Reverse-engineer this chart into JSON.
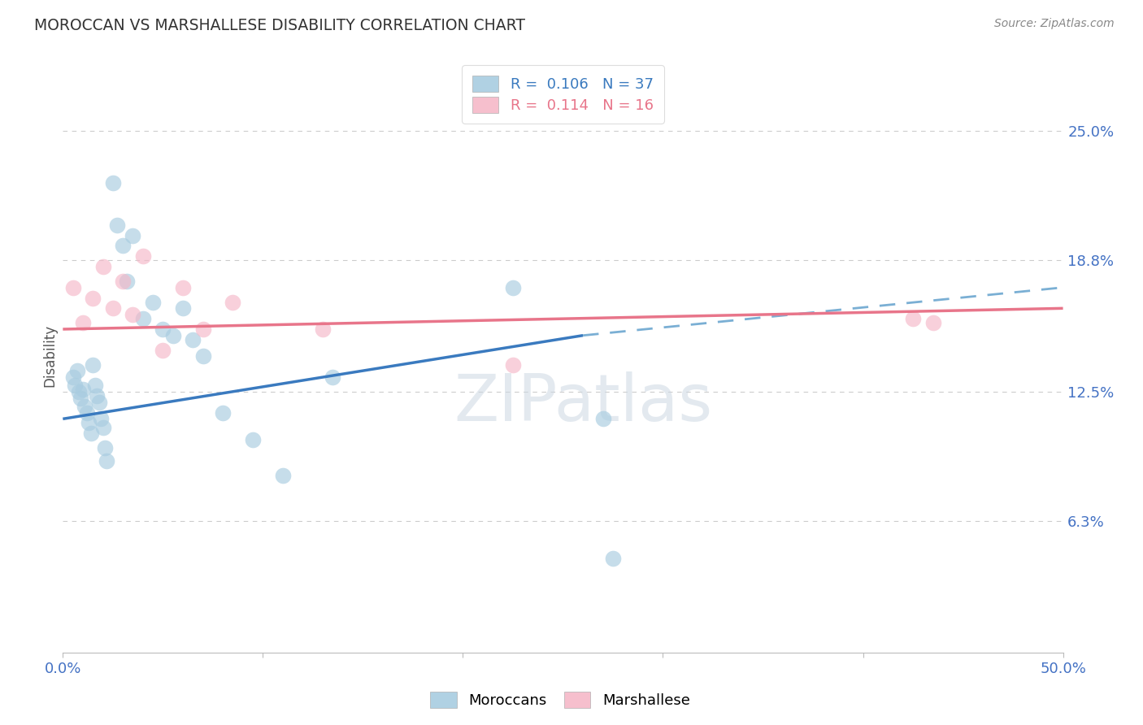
{
  "title": "MOROCCAN VS MARSHALLESE DISABILITY CORRELATION CHART",
  "source": "Source: ZipAtlas.com",
  "ylabel_label": "Disability",
  "xlim": [
    0,
    50
  ],
  "ylim": [
    0,
    28.5
  ],
  "yticks": [
    6.3,
    12.5,
    18.8,
    25.0
  ],
  "xticks": [
    0,
    10,
    20,
    30,
    40,
    50
  ],
  "legend_R1": "0.106",
  "legend_N1": "37",
  "legend_R2": "0.114",
  "legend_N2": "16",
  "blue_scatter_color": "#a8cce0",
  "pink_scatter_color": "#f5b8c8",
  "blue_line_color": "#3a7abf",
  "pink_line_color": "#e8758a",
  "blue_dash_color": "#7aafd4",
  "moroccans_x": [
    0.5,
    0.6,
    0.7,
    0.8,
    0.9,
    1.0,
    1.1,
    1.2,
    1.3,
    1.4,
    1.5,
    1.6,
    1.7,
    1.8,
    1.9,
    2.0,
    2.1,
    2.2,
    2.5,
    2.7,
    3.0,
    3.2,
    3.5,
    4.0,
    4.5,
    5.0,
    5.5,
    6.0,
    6.5,
    7.0,
    8.0,
    9.5,
    11.0,
    13.5,
    22.5,
    27.0,
    27.5
  ],
  "moroccans_y": [
    13.2,
    12.8,
    13.5,
    12.5,
    12.2,
    12.6,
    11.8,
    11.5,
    11.0,
    10.5,
    13.8,
    12.8,
    12.3,
    12.0,
    11.2,
    10.8,
    9.8,
    9.2,
    22.5,
    20.5,
    19.5,
    17.8,
    20.0,
    16.0,
    16.8,
    15.5,
    15.2,
    16.5,
    15.0,
    14.2,
    11.5,
    10.2,
    8.5,
    13.2,
    17.5,
    11.2,
    4.5
  ],
  "marshallese_x": [
    0.5,
    1.0,
    1.5,
    2.0,
    2.5,
    3.0,
    3.5,
    4.0,
    5.0,
    6.0,
    7.0,
    8.5,
    13.0,
    22.5,
    42.5,
    43.5
  ],
  "marshallese_y": [
    17.5,
    15.8,
    17.0,
    18.5,
    16.5,
    17.8,
    16.2,
    19.0,
    14.5,
    17.5,
    15.5,
    16.8,
    15.5,
    13.8,
    16.0,
    15.8
  ],
  "blue_solid_x0": 0,
  "blue_solid_x1": 26,
  "blue_solid_y0": 11.2,
  "blue_solid_y1": 15.2,
  "blue_dash_x0": 26,
  "blue_dash_x1": 50,
  "blue_dash_y0": 15.2,
  "blue_dash_y1": 17.5,
  "pink_x0": 0,
  "pink_x1": 50,
  "pink_y0": 15.5,
  "pink_y1": 16.5,
  "watermark_text": "ZIPatlas",
  "background_color": "#ffffff",
  "grid_color": "#cccccc"
}
